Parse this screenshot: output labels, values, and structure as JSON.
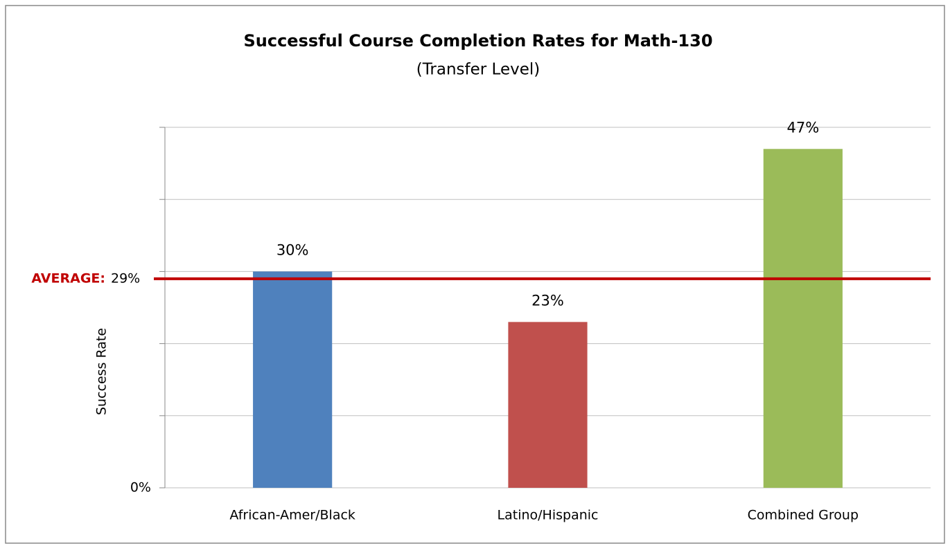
{
  "chart_data": {
    "type": "bar",
    "title": "Successful Course Completion Rates for Math-130",
    "subtitle": "(Transfer Level)",
    "y_label": "Success Rate",
    "categories": [
      "African-Amer/Black",
      "Latino/Hispanic",
      "Combined Group"
    ],
    "values": [
      30,
      23,
      47
    ],
    "value_labels": [
      "30%",
      "23%",
      "47%"
    ],
    "colors": [
      "#4f81bd",
      "#c0504d",
      "#9bbb59"
    ],
    "ylim": [
      0,
      50
    ],
    "yticks": [
      {
        "value": 0,
        "label": "0%"
      },
      {
        "value": 10,
        "label": null
      },
      {
        "value": 20,
        "label": null
      },
      {
        "value": 30,
        "label": null
      },
      {
        "value": 40,
        "label": null
      },
      {
        "value": 50,
        "label": null
      }
    ],
    "grid": true,
    "average": {
      "label": "AVERAGE:",
      "value": 29,
      "value_label": "29%",
      "color": "#c00000"
    }
  }
}
